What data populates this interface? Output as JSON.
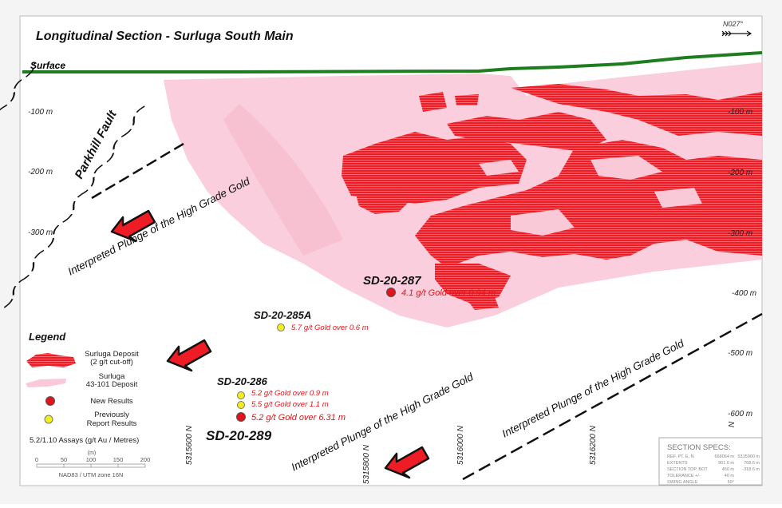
{
  "title": "Longitudinal Section - Surluga South Main",
  "north_label": "N027°",
  "surface_label": "Surface",
  "fault_label": "Parkhill Fault",
  "depth_labels_left": [
    "-100 m",
    "-200 m",
    "-300 m"
  ],
  "depth_labels_right": [
    "-100 m",
    "-200 m",
    "-300 m",
    "-400 m",
    "-500 m",
    "-600 m"
  ],
  "northing_labels": [
    "5315600 N",
    "5315800 N",
    "5316000 N",
    "5316200 N",
    "N"
  ],
  "plunge_label": "Interpreted Plunge of the High Grade Gold",
  "drill_holes": [
    {
      "id": "SD-20-287",
      "results": [
        {
          "text": "4.1 g/t Gold over 0.94 m",
          "type": "new"
        }
      ]
    },
    {
      "id": "SD-20-285A",
      "results": [
        {
          "text": "5.7 g/t Gold over 0.6 m",
          "type": "previous"
        }
      ]
    },
    {
      "id": "SD-20-286",
      "results": [
        {
          "text": "5.2 g/t Gold over 0.9 m",
          "type": "previous"
        },
        {
          "text": "5.5 g/t Gold over 1.1 m",
          "type": "previous"
        }
      ]
    },
    {
      "id": "SD-20-289",
      "results": [
        {
          "text": "5.2 g/t Gold over 6.31 m",
          "type": "new"
        }
      ]
    }
  ],
  "legend": {
    "title": "Legend",
    "deposit_1": "Surluga Deposit",
    "deposit_1b": "(2 g/t cut-off)",
    "deposit_2": "Surluga",
    "deposit_2b": "43-101 Deposit",
    "new_results": "New Results",
    "previous_1": "Previously",
    "previous_2": "Report Results",
    "assays": "5.2/1.10 Assays (g/t Au / Metres)",
    "scale_unit": "(m)",
    "scale_ticks": [
      "0",
      "50",
      "100",
      "150",
      "200"
    ],
    "projection": "NAD83 / UTM zone 16N"
  },
  "section_specs": {
    "title": "SECTION  SPECS:",
    "rows": [
      [
        "REF. PT.  E, N",
        "668064 m",
        "5315900 m"
      ],
      [
        "EXTENTS",
        "901.6 m",
        "768.6 m"
      ],
      [
        "SECTION TOP, BOT",
        "450 m",
        "-318.6 m"
      ],
      [
        "TOLERANCE  +/-",
        "40 m",
        ""
      ],
      [
        "SWING ANGLE",
        "59°",
        ""
      ]
    ]
  },
  "colors": {
    "surface": "#1e7d1e",
    "deposit": "#ee1c24",
    "pink": "#f9c9d8",
    "new": "#e0141a",
    "previous": "#f2ee1a"
  }
}
